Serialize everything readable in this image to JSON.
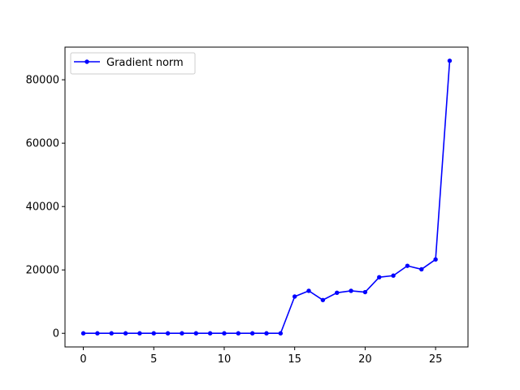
{
  "chart_data": {
    "type": "line",
    "title": "",
    "xlabel": "",
    "ylabel": "",
    "xlim": [
      -1.3,
      27.3
    ],
    "ylim": [
      -4300,
      90300
    ],
    "x_ticks": [
      0,
      5,
      10,
      15,
      20,
      25
    ],
    "y_ticks": [
      0,
      20000,
      40000,
      60000,
      80000
    ],
    "x_tick_labels": [
      "0",
      "5",
      "10",
      "15",
      "20",
      "25"
    ],
    "y_tick_labels": [
      "0",
      "20000",
      "40000",
      "60000",
      "80000"
    ],
    "grid": false,
    "legend_position": "upper-left",
    "series": [
      {
        "name": "Gradient norm",
        "color": "#0000ff",
        "marker": "circle",
        "x": [
          0,
          1,
          2,
          3,
          4,
          5,
          6,
          7,
          8,
          9,
          10,
          11,
          12,
          13,
          14,
          15,
          16,
          17,
          18,
          19,
          20,
          21,
          22,
          23,
          24,
          25,
          26
        ],
        "y": [
          0,
          0,
          0,
          0,
          0,
          0,
          0,
          0,
          0,
          0,
          0,
          0,
          0,
          0,
          0,
          11600,
          13400,
          10500,
          12800,
          13400,
          13000,
          17700,
          18200,
          21300,
          20200,
          23300,
          86000
        ]
      }
    ]
  }
}
